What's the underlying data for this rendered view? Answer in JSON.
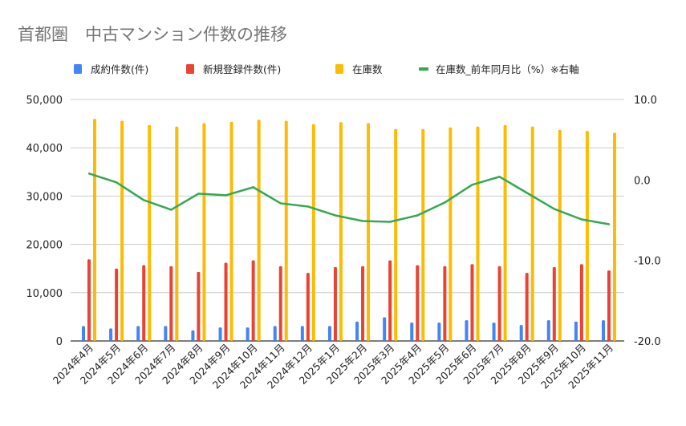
{
  "chart_data": {
    "type": "bar+line",
    "title": "首都圏　中古マンション件数の推移",
    "legend_position": "top",
    "categories": [
      "2024年4月",
      "2024年5月",
      "2024年6月",
      "2024年7月",
      "2024年8月",
      "2024年9月",
      "2024年10月",
      "2024年11月",
      "2024年12月",
      "2025年1月",
      "2025年2月",
      "2025年3月",
      "2025年4月",
      "2025年5月",
      "2025年6月",
      "2025年7月",
      "2025年8月",
      "2025年9月",
      "2025年10月",
      "2025年11月"
    ],
    "series": [
      {
        "name": "成約件数(件)",
        "type": "bar",
        "axis": "left",
        "color": "#4285F4",
        "values": [
          3100,
          2600,
          3100,
          3100,
          2200,
          2800,
          2800,
          3100,
          3100,
          3100,
          4000,
          4900,
          3800,
          3800,
          4300,
          3800,
          3300,
          4300,
          4000,
          4300
        ]
      },
      {
        "name": "新規登録件数(件)",
        "type": "bar",
        "axis": "left",
        "color": "#EA4335",
        "values": [
          16900,
          15000,
          15700,
          15500,
          14300,
          16200,
          16700,
          15500,
          14100,
          15300,
          15500,
          16700,
          15700,
          15500,
          15900,
          15500,
          14100,
          15300,
          15900,
          14600
        ]
      },
      {
        "name": "在庫数",
        "type": "bar",
        "axis": "left",
        "color": "#FBBC04",
        "values": [
          46000,
          45600,
          44700,
          44400,
          45100,
          45400,
          45800,
          45600,
          44900,
          45300,
          45100,
          43900,
          43900,
          44200,
          44400,
          44700,
          44400,
          43700,
          43500,
          43100
        ]
      },
      {
        "name": "在庫数_前年同月比（%）※右軸",
        "type": "line",
        "axis": "right",
        "color": "#34A853",
        "values": [
          0.8,
          -0.3,
          -2.5,
          -3.7,
          -1.7,
          -1.9,
          -0.9,
          -2.9,
          -3.3,
          -4.4,
          -5.1,
          -5.2,
          -4.4,
          -2.8,
          -0.6,
          0.4,
          -1.6,
          -3.6,
          -4.9,
          -5.5
        ]
      }
    ],
    "left_axis": {
      "ylim": [
        0,
        50000
      ],
      "ticks": [
        "0",
        "10,000",
        "20,000",
        "30,000",
        "40,000",
        "50,000"
      ]
    },
    "right_axis": {
      "ylim": [
        -20,
        10
      ],
      "ticks": [
        "-20.0",
        "-10.0",
        "0.0",
        "10.0"
      ]
    },
    "grid": true
  }
}
